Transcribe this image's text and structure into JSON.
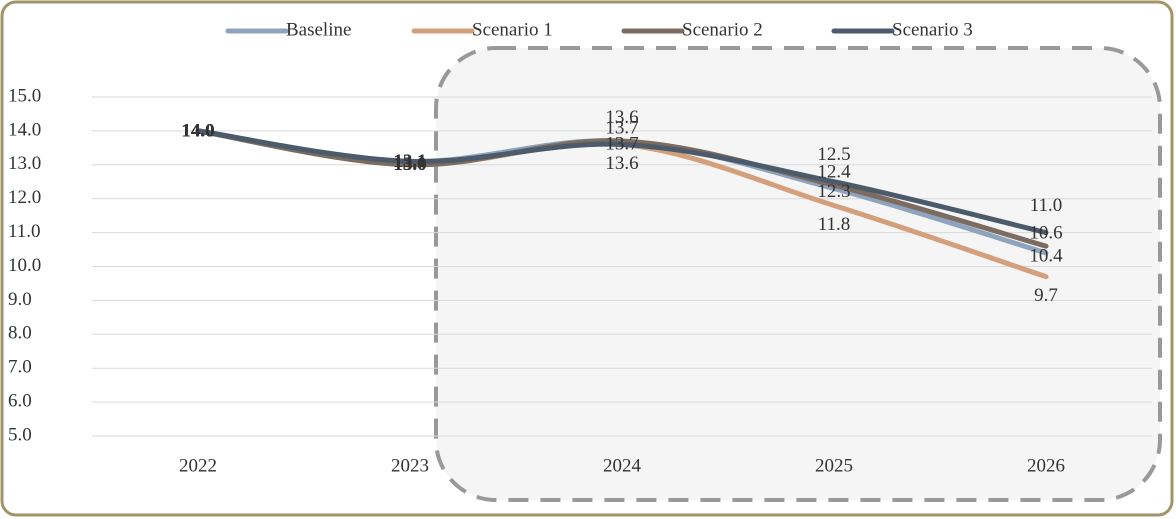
{
  "chart_data": {
    "type": "line",
    "categories": [
      "2022",
      "2023",
      "2024",
      "2025",
      "2026"
    ],
    "series": [
      {
        "name": "Baseline",
        "color": "#8ea4be",
        "values": [
          14.0,
          13.1,
          13.7,
          12.3,
          10.4
        ],
        "value_labels": [
          "14.0",
          "13.1",
          "13.7",
          "12.3",
          "10.4"
        ]
      },
      {
        "name": "Scenario 1",
        "color": "#d4a07c",
        "values": [
          14.0,
          13.0,
          13.6,
          11.8,
          9.7
        ],
        "value_labels": [
          "14.0",
          "13.0",
          "13.6",
          "11.8",
          "9.7"
        ]
      },
      {
        "name": "Scenario 2",
        "color": "#7b6b60",
        "values": [
          14.0,
          13.0,
          13.7,
          12.4,
          10.6
        ],
        "value_labels": [
          "14.0",
          "13.0",
          "13.7",
          "12.4",
          "10.6"
        ]
      },
      {
        "name": "Scenario 3",
        "color": "#4b5b6b",
        "values": [
          14.0,
          13.1,
          13.6,
          12.5,
          11.0
        ],
        "value_labels": [
          "14.0",
          "13.1",
          "13.6",
          "12.5",
          "11.0"
        ]
      }
    ],
    "ylim": [
      5,
      15
    ],
    "yticks": [
      {
        "value": 5,
        "label": "5.0"
      },
      {
        "value": 6,
        "label": "6.0"
      },
      {
        "value": 7,
        "label": "7.0"
      },
      {
        "value": 8,
        "label": "8.0"
      },
      {
        "value": 9,
        "label": "9.0"
      },
      {
        "value": 10,
        "label": "10.0"
      },
      {
        "value": 11,
        "label": "11.0"
      },
      {
        "value": 12,
        "label": "12.0"
      },
      {
        "value": 13,
        "label": "13.0"
      },
      {
        "value": 14,
        "label": "14.0"
      },
      {
        "value": 15,
        "label": "15.0"
      }
    ],
    "grid": true,
    "legend": "top"
  }
}
